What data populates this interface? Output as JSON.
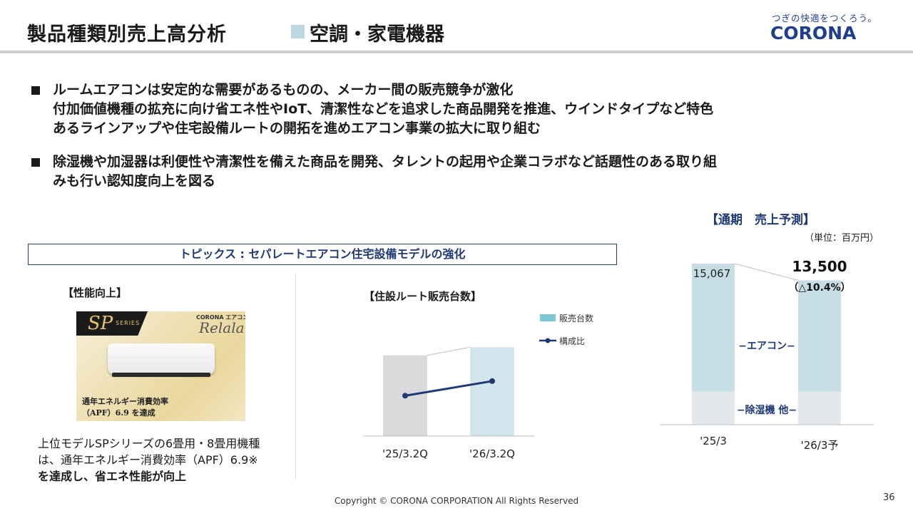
{
  "header": {
    "title": "製品種類別売上高分析",
    "subtitle": "空調・家電機器",
    "accent": "#bcd7e0"
  },
  "logo": {
    "tagline": "つぎの快適をつくろう。",
    "name": "CORONA",
    "color": "#1f3e8c"
  },
  "bullets": [
    {
      "lines": [
        "ルームエアコンは安定的な需要があるものの、メーカー間の販売競争が激化",
        "付加価値機種の拡充に向け省エネ性やIoT、清潔性などを追求した商品開発を推進、ウインドタイプなど特色",
        "あるラインアップや住宅設備ルートの開拓を進めエアコン事業の拡大に取り組む"
      ]
    },
    {
      "lines": [
        "除湿機や加湿器は利便性や清潔性を備えた商品を開発、タレントの起用や企業コラボなど話題性のある取り組",
        "みも行い認知度向上を図る"
      ]
    }
  ],
  "topic": {
    "title": "トピックス : セパレートエアコン住宅設備モデルの強化"
  },
  "performance": {
    "label": "【性能向上】",
    "image": {
      "series_mark": "SP",
      "series_word": "SERIES",
      "brand_top": "CORONA エアコン",
      "product_name": "Relala",
      "caption_line1": "通年エネルギー消費効率",
      "caption_line2": "（APF）6.9 を達成"
    },
    "description": [
      "上位モデルSPシリーズの6畳用・8畳用機種",
      "は、通年エネルギー消費効率（APF）6.9※",
      "を達成し、省エネ性能が向上"
    ]
  },
  "route_chart": {
    "label": "【住設ルート販売台数】"
  },
  "forecast": {
    "label": "【通期　売上予測】",
    "unit": "（単位：百万円）"
  },
  "chart_data": [
    {
      "type": "bar",
      "title": "【住設ルート販売台数】",
      "categories": [
        "'25/3.2Q",
        "'26/3.2Q"
      ],
      "series": [
        {
          "name": "販売台数",
          "type": "bar",
          "values": [
            100,
            110
          ],
          "color_by_category": [
            "#d9dadc",
            "#d2e4ec"
          ],
          "legend_color": "#7fc6d4"
        },
        {
          "name": "構成比",
          "type": "line",
          "values": [
            50,
            68
          ],
          "color": "#1f3a73"
        }
      ],
      "ylim": [
        0,
        150
      ],
      "legend_position": "right",
      "grid": false
    },
    {
      "type": "bar",
      "stacked": true,
      "title": "【通期　売上予測】",
      "unit": "（単位：百万円）",
      "categories": [
        "'25/3",
        "'26/3予"
      ],
      "totals": [
        15067,
        13500
      ],
      "total_labels": [
        "15,067",
        "13,500"
      ],
      "change_label": "（△10.4%）",
      "series": [
        {
          "name": "除湿機 他",
          "values": [
            3100,
            3100
          ],
          "color": "#e2e8ec"
        },
        {
          "name": "エアコン",
          "values": [
            11967,
            10400
          ],
          "color": "#c6dde6"
        }
      ],
      "segment_labels": [
        "−エアコン−",
        "−除湿機 他−"
      ],
      "ylim": [
        0,
        17000
      ],
      "grid": false
    }
  ],
  "footer": {
    "copyright": "Copyright © CORONA CORPORATION All Rights Reserved",
    "page": "36"
  }
}
